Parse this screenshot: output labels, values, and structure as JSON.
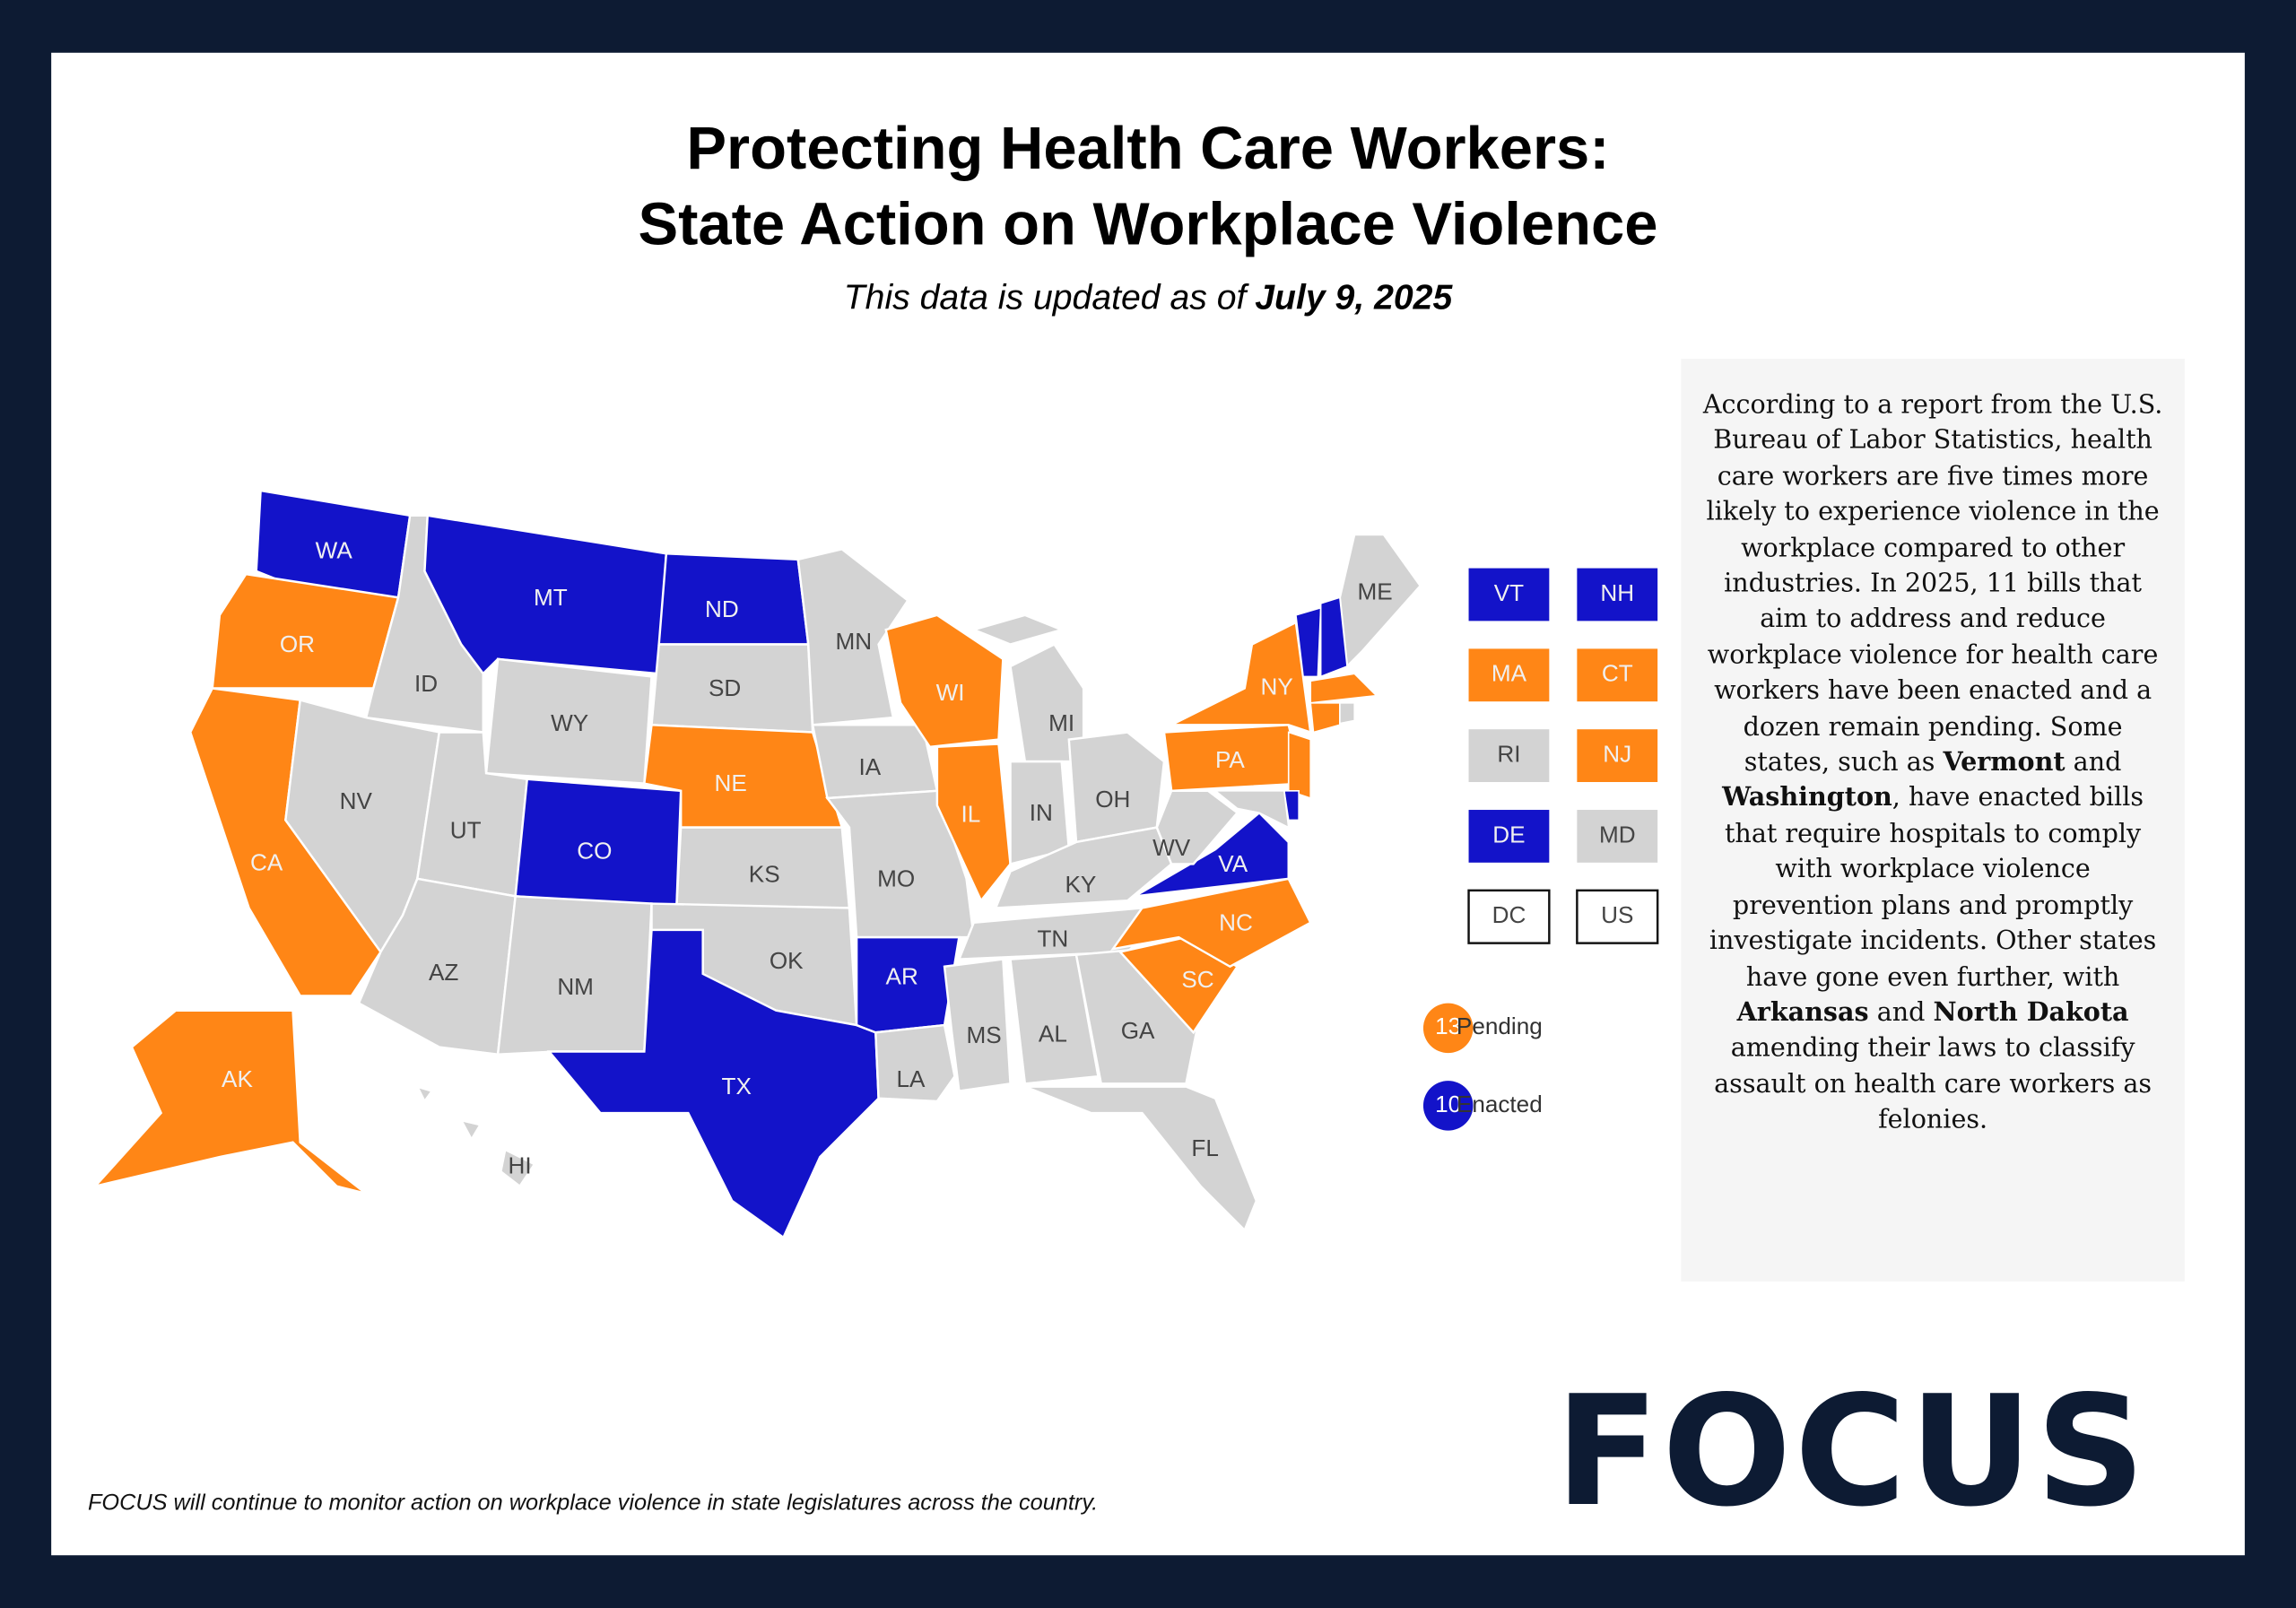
{
  "header": {
    "title": [
      "Protecting Health Care Workers:",
      "State Action on Workplace Violence"
    ],
    "subtitle": {
      "text": "This data is updated as of",
      "date": "July 9, 2025"
    }
  },
  "colors": {
    "enacted": "#1313c9",
    "pending": "#ff8616",
    "none": "#d3d3d3",
    "outline": "#ffffff"
  },
  "states": [
    {
      "label": "WA",
      "status": "enacted"
    },
    {
      "label": "OR",
      "status": "pending"
    },
    {
      "label": "CA",
      "status": "pending"
    },
    {
      "label": "ID",
      "status": "none"
    },
    {
      "label": "NV",
      "status": "none"
    },
    {
      "label": "MT",
      "status": "enacted"
    },
    {
      "label": "WY",
      "status": "none"
    },
    {
      "label": "UT",
      "status": "none"
    },
    {
      "label": "AZ",
      "status": "none"
    },
    {
      "label": "CO",
      "status": "enacted"
    },
    {
      "label": "NM",
      "status": "none"
    },
    {
      "label": "ND",
      "status": "enacted"
    },
    {
      "label": "SD",
      "status": "none"
    },
    {
      "label": "NE",
      "status": "pending"
    },
    {
      "label": "KS",
      "status": "none"
    },
    {
      "label": "OK",
      "status": "none"
    },
    {
      "label": "TX",
      "status": "enacted"
    },
    {
      "label": "MN",
      "status": "none"
    },
    {
      "label": "IA",
      "status": "none"
    },
    {
      "label": "MO",
      "status": "none"
    },
    {
      "label": "AR",
      "status": "enacted"
    },
    {
      "label": "LA",
      "status": "none"
    },
    {
      "label": "WI",
      "status": "pending"
    },
    {
      "label": "IL",
      "status": "pending"
    },
    {
      "label": "MI",
      "status": "none"
    },
    {
      "label": "IN",
      "status": "none"
    },
    {
      "label": "OH",
      "status": "none"
    },
    {
      "label": "KY",
      "status": "none"
    },
    {
      "label": "TN",
      "status": "none"
    },
    {
      "label": "MS",
      "status": "none"
    },
    {
      "label": "AL",
      "status": "none"
    },
    {
      "label": "GA",
      "status": "none"
    },
    {
      "label": "FL",
      "status": "none"
    },
    {
      "label": "SC",
      "status": "pending"
    },
    {
      "label": "NC",
      "status": "pending"
    },
    {
      "label": "VA",
      "status": "enacted"
    },
    {
      "label": "WV",
      "status": "none"
    },
    {
      "label": "PA",
      "status": "pending"
    },
    {
      "label": "NY",
      "status": "pending"
    },
    {
      "label": "ME",
      "status": "none"
    },
    {
      "label": "AK",
      "status": "pending"
    },
    {
      "label": "HI",
      "status": "none"
    }
  ],
  "callouts": [
    {
      "label": "VT",
      "status": "enacted"
    },
    {
      "label": "NH",
      "status": "enacted"
    },
    {
      "label": "MA",
      "status": "pending"
    },
    {
      "label": "CT",
      "status": "pending"
    },
    {
      "label": "RI",
      "status": "none"
    },
    {
      "label": "NJ",
      "status": "pending"
    },
    {
      "label": "DE",
      "status": "enacted"
    },
    {
      "label": "MD",
      "status": "none"
    },
    {
      "label": "DC",
      "status": "outline"
    },
    {
      "label": "US",
      "status": "outline"
    }
  ],
  "legend": [
    {
      "count": 13,
      "label": "Pending",
      "status": "pending"
    },
    {
      "count": 10,
      "label": "Enacted",
      "status": "enacted"
    }
  ],
  "paragraph": [
    {
      "text": "According to a report from the U.S. Bureau of Labor Statistics, health care workers are five times more likely to experience violence in the workplace compared to other industries. In 2025, 11 bills that aim to address and reduce workplace violence for health care workers have been enacted and a dozen remain pending. Some states, such as",
      "bold": false
    },
    {
      "text": "Vermont",
      "bold": true
    },
    {
      "text": "and",
      "bold": false
    },
    {
      "text": "Washington",
      "bold": true
    },
    {
      "text": ", have enacted bills that require hospitals to comply with workplace violence prevention plans and promptly investigate incidents. Other states have gone even further, with",
      "bold": false
    },
    {
      "text": "Arkansas",
      "bold": true
    },
    {
      "text": "and",
      "bold": false
    },
    {
      "text": "North Dakota",
      "bold": true
    },
    {
      "text": "amending their laws to classify assault on health care workers as felonies.",
      "bold": false
    }
  ],
  "footer": "FOCUS will continue to monitor action on workplace violence in state legislatures across the country.",
  "logo": "FOCUS"
}
